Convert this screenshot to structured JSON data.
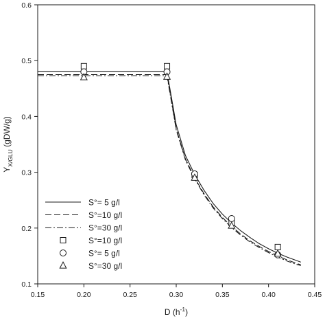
{
  "chart_data": {
    "type": "scatter",
    "xlabel": "D (h",
    "xlabel_sup": "-1",
    "xlabel_end": ")",
    "ylabel": "Y",
    "ylabel_sub": "X/",
    "ylabel_sub2": "GLU",
    "ylabel_end": " (gDW/g)",
    "xlim": [
      0.15,
      0.45
    ],
    "ylim": [
      0.1,
      0.6
    ],
    "xticks": [
      "0.15",
      "0.20",
      "0.25",
      "0.30",
      "0.35",
      "0.40",
      "0.45"
    ],
    "yticks": [
      "0.1",
      "0.2",
      "0.3",
      "0.4",
      "0.5",
      "0.6"
    ],
    "grid": false,
    "legend_position": "bottom-left",
    "series": [
      {
        "name": "S°= 5 g/l",
        "kind": "line",
        "style": "solid",
        "x": [
          0.15,
          0.29,
          0.3,
          0.31,
          0.32,
          0.33,
          0.34,
          0.35,
          0.36,
          0.37,
          0.38,
          0.39,
          0.4,
          0.41,
          0.42,
          0.43,
          0.435
        ],
        "y": [
          0.48,
          0.48,
          0.385,
          0.33,
          0.296,
          0.268,
          0.244,
          0.225,
          0.209,
          0.195,
          0.183,
          0.172,
          0.163,
          0.155,
          0.148,
          0.142,
          0.139
        ]
      },
      {
        "name": "S°=10 g/l",
        "kind": "line",
        "style": "dashed",
        "x": [
          0.15,
          0.29,
          0.3,
          0.31,
          0.32,
          0.33,
          0.34,
          0.35,
          0.36,
          0.37,
          0.38,
          0.39,
          0.4,
          0.41,
          0.42,
          0.43,
          0.435
        ],
        "y": [
          0.475,
          0.475,
          0.378,
          0.324,
          0.29,
          0.262,
          0.238,
          0.219,
          0.203,
          0.189,
          0.177,
          0.167,
          0.158,
          0.15,
          0.143,
          0.137,
          0.134
        ]
      },
      {
        "name": "S°=30 g/l",
        "kind": "line",
        "style": "dashdot",
        "x": [
          0.15,
          0.29,
          0.3,
          0.31,
          0.32,
          0.33,
          0.34,
          0.35,
          0.36,
          0.37,
          0.38,
          0.39,
          0.4,
          0.41,
          0.42,
          0.43,
          0.435
        ],
        "y": [
          0.473,
          0.473,
          0.376,
          0.322,
          0.288,
          0.26,
          0.236,
          0.217,
          0.201,
          0.187,
          0.175,
          0.165,
          0.156,
          0.148,
          0.141,
          0.135,
          0.133
        ]
      },
      {
        "name": "S°=10 g/l",
        "kind": "marker",
        "marker": "square",
        "x": [
          0.2,
          0.29,
          0.32,
          0.36,
          0.41
        ],
        "y": [
          0.49,
          0.49,
          0.295,
          0.209,
          0.166
        ]
      },
      {
        "name": "S°= 5 g/l",
        "kind": "marker",
        "marker": "circle",
        "x": [
          0.2,
          0.29,
          0.32,
          0.36,
          0.41
        ],
        "y": [
          0.48,
          0.48,
          0.297,
          0.217,
          0.152
        ]
      },
      {
        "name": "S°=30 g/l",
        "kind": "marker",
        "marker": "triangle",
        "x": [
          0.2,
          0.29,
          0.32,
          0.36,
          0.41
        ],
        "y": [
          0.47,
          0.471,
          0.29,
          0.204,
          0.154
        ]
      }
    ]
  }
}
